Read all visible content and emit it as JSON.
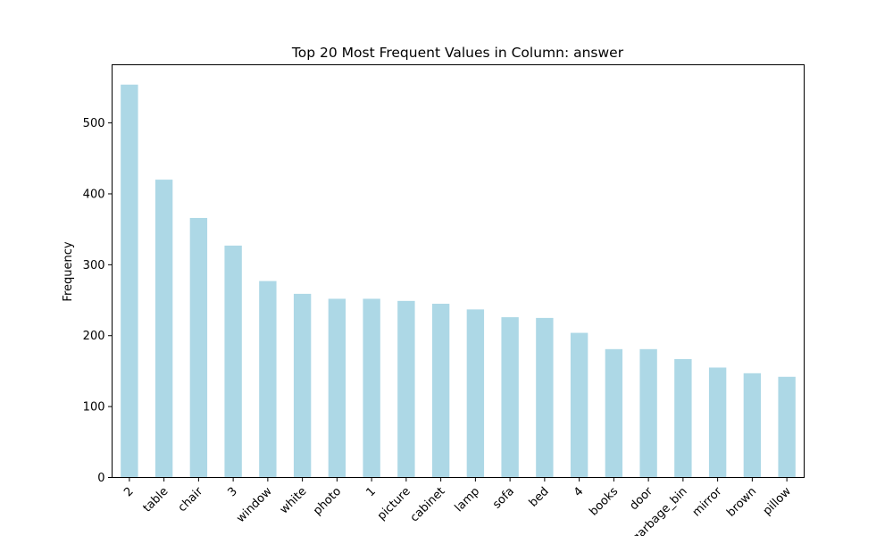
{
  "chart_data": {
    "type": "bar",
    "title": "Top 20 Most Frequent Values in Column: answer",
    "xlabel": "",
    "ylabel": "Frequency",
    "categories": [
      "2",
      "table",
      "chair",
      "3",
      "window",
      "white",
      "photo",
      "1",
      "picture",
      "cabinet",
      "lamp",
      "sofa",
      "bed",
      "4",
      "books",
      "door",
      "garbage_bin",
      "mirror",
      "brown",
      "pillow"
    ],
    "values": [
      554,
      420,
      366,
      327,
      277,
      259,
      252,
      252,
      249,
      245,
      237,
      226,
      225,
      204,
      181,
      181,
      167,
      155,
      147,
      142
    ],
    "ylim": [
      0,
      582
    ],
    "yticks": [
      0,
      100,
      200,
      300,
      400,
      500
    ],
    "grid": false,
    "legend": "none",
    "bar_color": "#add8e6",
    "tick_rotation_deg": 45
  }
}
